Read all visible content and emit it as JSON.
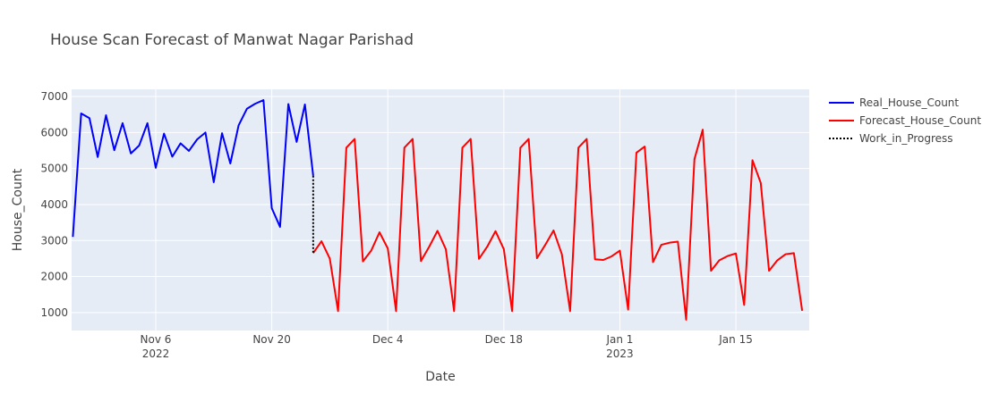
{
  "chart_data": {
    "type": "line",
    "title": "House Scan Forecast of Manwat Nagar Parishad",
    "xlabel": "Date",
    "ylabel": "House_Count",
    "xlim": [
      "2022-10-27",
      "2023-01-24"
    ],
    "ylim": [
      500,
      7200
    ],
    "grid": true,
    "legend_position": "right",
    "x_ticks": [
      {
        "date": "2022-11-06",
        "label": "Nov 6",
        "sublabel": "2022"
      },
      {
        "date": "2022-11-20",
        "label": "Nov 20",
        "sublabel": ""
      },
      {
        "date": "2022-12-04",
        "label": "Dec 4",
        "sublabel": ""
      },
      {
        "date": "2022-12-18",
        "label": "Dec 18",
        "sublabel": ""
      },
      {
        "date": "2023-01-01",
        "label": "Jan 1",
        "sublabel": "2023"
      },
      {
        "date": "2023-01-15",
        "label": "Jan 15",
        "sublabel": ""
      }
    ],
    "y_ticks": [
      1000,
      2000,
      3000,
      4000,
      5000,
      6000,
      7000
    ],
    "series": [
      {
        "name": "Real_House_Count",
        "color": "#0000ff",
        "dash": "solid",
        "points": [
          [
            "2022-10-27",
            3100
          ],
          [
            "2022-10-28",
            6530
          ],
          [
            "2022-10-29",
            6400
          ],
          [
            "2022-10-30",
            5320
          ],
          [
            "2022-10-31",
            6480
          ],
          [
            "2022-11-01",
            5510
          ],
          [
            "2022-11-02",
            6260
          ],
          [
            "2022-11-03",
            5420
          ],
          [
            "2022-11-04",
            5640
          ],
          [
            "2022-11-05",
            6260
          ],
          [
            "2022-11-06",
            5020
          ],
          [
            "2022-11-07",
            5970
          ],
          [
            "2022-11-08",
            5330
          ],
          [
            "2022-11-09",
            5700
          ],
          [
            "2022-11-10",
            5490
          ],
          [
            "2022-11-11",
            5810
          ],
          [
            "2022-11-12",
            6000
          ],
          [
            "2022-11-13",
            4620
          ],
          [
            "2022-11-14",
            5980
          ],
          [
            "2022-11-15",
            5140
          ],
          [
            "2022-11-16",
            6200
          ],
          [
            "2022-11-17",
            6660
          ],
          [
            "2022-11-18",
            6800
          ],
          [
            "2022-11-19",
            6900
          ],
          [
            "2022-11-20",
            3900
          ],
          [
            "2022-11-21",
            3380
          ],
          [
            "2022-11-22",
            6790
          ],
          [
            "2022-11-23",
            5740
          ],
          [
            "2022-11-24",
            6780
          ],
          [
            "2022-11-25",
            4800
          ]
        ]
      },
      {
        "name": "Forecast_House_Count",
        "color": "#ff0000",
        "dash": "solid",
        "points": [
          [
            "2022-11-25",
            2650
          ],
          [
            "2022-11-26",
            2980
          ],
          [
            "2022-11-27",
            2500
          ],
          [
            "2022-11-28",
            1040
          ],
          [
            "2022-11-29",
            5580
          ],
          [
            "2022-11-30",
            5820
          ],
          [
            "2022-12-01",
            2420
          ],
          [
            "2022-12-02",
            2720
          ],
          [
            "2022-12-03",
            3230
          ],
          [
            "2022-12-04",
            2780
          ],
          [
            "2022-12-05",
            1040
          ],
          [
            "2022-12-06",
            5580
          ],
          [
            "2022-12-07",
            5820
          ],
          [
            "2022-12-08",
            2430
          ],
          [
            "2022-12-09",
            2830
          ],
          [
            "2022-12-10",
            3270
          ],
          [
            "2022-12-11",
            2760
          ],
          [
            "2022-12-12",
            1040
          ],
          [
            "2022-12-13",
            5580
          ],
          [
            "2022-12-14",
            5820
          ],
          [
            "2022-12-15",
            2490
          ],
          [
            "2022-12-16",
            2830
          ],
          [
            "2022-12-17",
            3260
          ],
          [
            "2022-12-18",
            2760
          ],
          [
            "2022-12-19",
            1040
          ],
          [
            "2022-12-20",
            5580
          ],
          [
            "2022-12-21",
            5820
          ],
          [
            "2022-12-22",
            2510
          ],
          [
            "2022-12-23",
            2880
          ],
          [
            "2022-12-24",
            3280
          ],
          [
            "2022-12-25",
            2620
          ],
          [
            "2022-12-26",
            1040
          ],
          [
            "2022-12-27",
            5580
          ],
          [
            "2022-12-28",
            5820
          ],
          [
            "2022-12-29",
            2480
          ],
          [
            "2022-12-30",
            2460
          ],
          [
            "2022-12-31",
            2560
          ],
          [
            "2023-01-01",
            2720
          ],
          [
            "2023-01-02",
            1080
          ],
          [
            "2023-01-03",
            5440
          ],
          [
            "2023-01-04",
            5610
          ],
          [
            "2023-01-05",
            2400
          ],
          [
            "2023-01-06",
            2880
          ],
          [
            "2023-01-07",
            2940
          ],
          [
            "2023-01-08",
            2970
          ],
          [
            "2023-01-09",
            800
          ],
          [
            "2023-01-10",
            5260
          ],
          [
            "2023-01-11",
            6080
          ],
          [
            "2023-01-12",
            2160
          ],
          [
            "2023-01-13",
            2450
          ],
          [
            "2023-01-14",
            2570
          ],
          [
            "2023-01-15",
            2640
          ],
          [
            "2023-01-16",
            1210
          ],
          [
            "2023-01-17",
            5230
          ],
          [
            "2023-01-18",
            4600
          ],
          [
            "2023-01-19",
            2160
          ],
          [
            "2023-01-20",
            2450
          ],
          [
            "2023-01-21",
            2620
          ],
          [
            "2023-01-22",
            2650
          ],
          [
            "2023-01-23",
            1050
          ]
        ]
      },
      {
        "name": "Work_in_Progress",
        "color": "#000000",
        "dash": "dot",
        "points": [
          [
            "2022-11-25",
            4800
          ],
          [
            "2022-11-25",
            2650
          ]
        ]
      }
    ]
  }
}
